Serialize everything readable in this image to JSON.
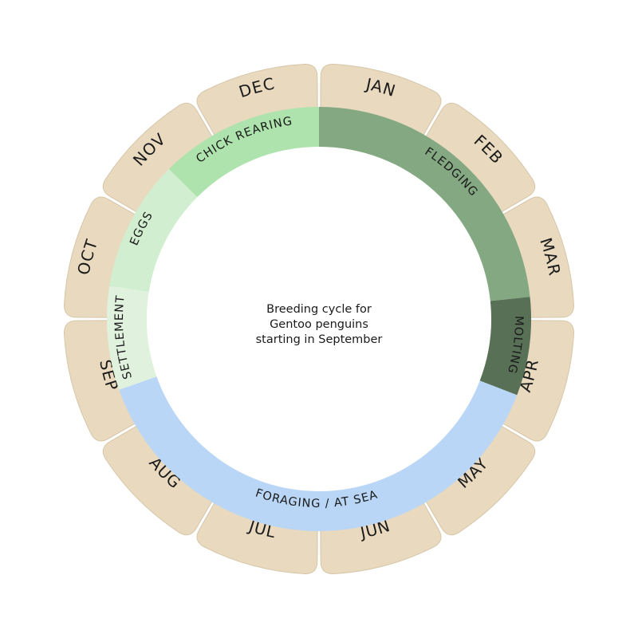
{
  "center_caption": {
    "line1": "Breeding cycle for",
    "line2": "Gentoo penguins",
    "line3": "starting in September"
  },
  "months": [
    {
      "id": "jan",
      "label": "JAN"
    },
    {
      "id": "feb",
      "label": "FEB"
    },
    {
      "id": "mar",
      "label": "MAR"
    },
    {
      "id": "apr",
      "label": "APR"
    },
    {
      "id": "may",
      "label": "MAY"
    },
    {
      "id": "jun",
      "label": "JUN"
    },
    {
      "id": "jul",
      "label": "JUL"
    },
    {
      "id": "aug",
      "label": "AUG"
    },
    {
      "id": "sep",
      "label": "SEP"
    },
    {
      "id": "oct",
      "label": "OCT"
    },
    {
      "id": "nov",
      "label": "NOV"
    },
    {
      "id": "dec",
      "label": "DEC"
    }
  ],
  "phases": [
    {
      "id": "fledging",
      "label": "FLEDGING",
      "start_month": 0,
      "end_month": 2.8,
      "color": "#84a982"
    },
    {
      "id": "molting",
      "label": "MOLTING",
      "start_month": 2.8,
      "end_month": 3.7,
      "color": "#587055"
    },
    {
      "id": "foraging",
      "label": "FORAGING / AT SEA",
      "start_month": 3.7,
      "end_month": 8.35,
      "color": "#b9d6f6"
    },
    {
      "id": "settlement",
      "label": "SETTLEMENT",
      "start_month": 8.35,
      "end_month": 9.3,
      "color": "#e0f2de"
    },
    {
      "id": "eggs",
      "label": "EGGS",
      "start_month": 9.3,
      "end_month": 10.5,
      "color": "#d1efd0"
    },
    {
      "id": "chick-rearing",
      "label": "CHICK REARING",
      "start_month": 10.5,
      "end_month": 12,
      "color": "#aee3ad"
    }
  ],
  "colors": {
    "month_tile": "#e8d9bf",
    "month_tile_edge": "#d6c6a8",
    "text": "#1a1a1a",
    "background": "#ffffff"
  }
}
